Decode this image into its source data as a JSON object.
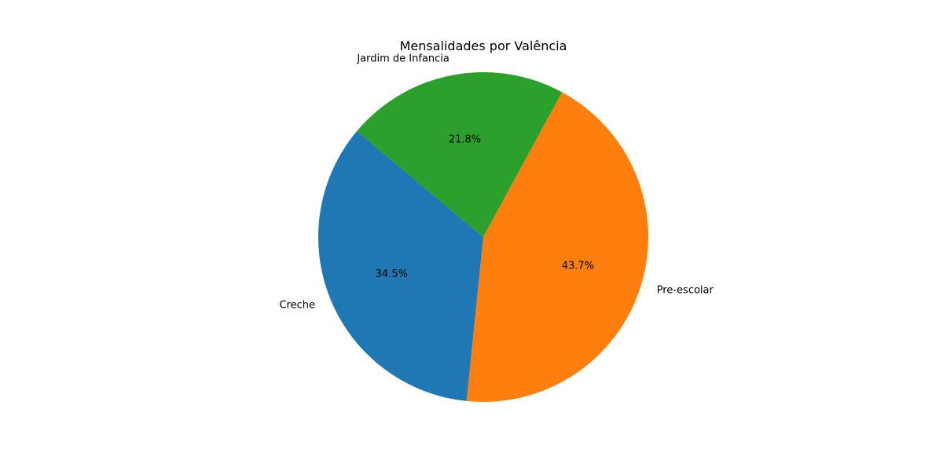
{
  "chart_data": {
    "type": "pie",
    "title": "Mensalidades por Valência",
    "start_angle_deg": 140,
    "direction": "counterclockwise",
    "slices": [
      {
        "label": "Creche",
        "percent": 34.5,
        "percent_label": "34.5%",
        "color": "#1f77b4"
      },
      {
        "label": "Pre-escolar",
        "percent": 43.7,
        "percent_label": "43.7%",
        "color": "#ff7f0e"
      },
      {
        "label": "Jardim de Infancia",
        "percent": 21.8,
        "percent_label": "21.8%",
        "color": "#2ca02c"
      }
    ]
  }
}
